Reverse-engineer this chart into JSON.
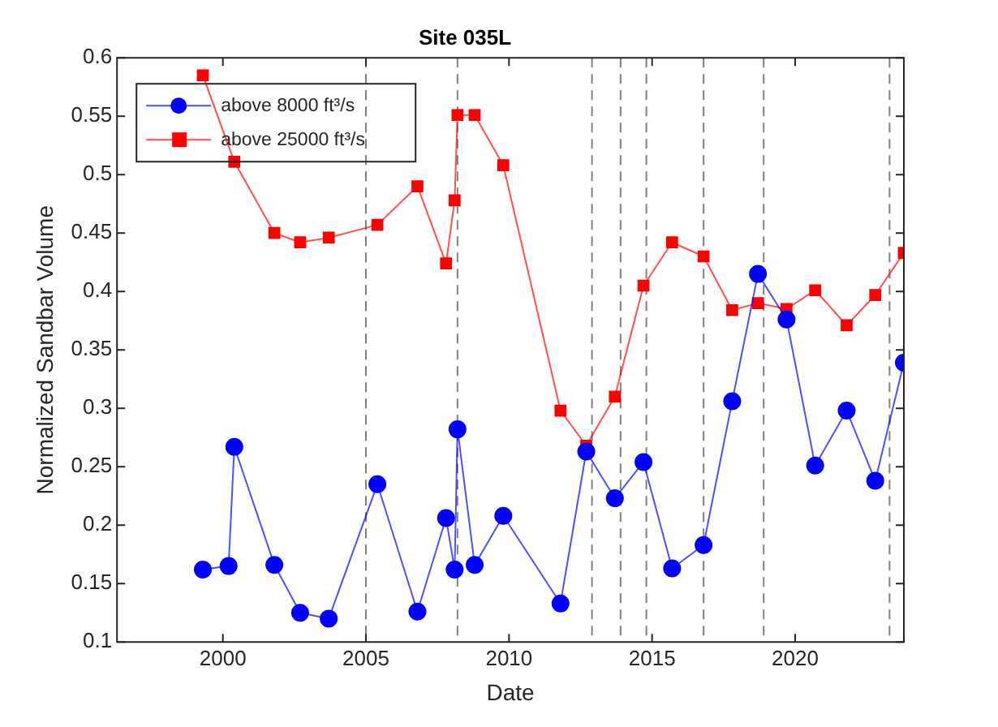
{
  "chart_data": {
    "type": "line",
    "title": "Site 035L",
    "xlabel": "Date",
    "ylabel": "Normalized Sandbar Volume",
    "xlim": [
      1996.3,
      2023.8
    ],
    "xticks": [
      2000,
      2005,
      2010,
      2015,
      2020
    ],
    "ylim": [
      0.1,
      0.6
    ],
    "yticks": [
      0.1,
      0.15,
      0.2,
      0.25,
      0.3,
      0.35,
      0.4,
      0.45,
      0.5,
      0.55,
      0.6
    ],
    "grid": false,
    "legend": "top left",
    "series": [
      {
        "name": "above 8000 ft³/s",
        "color": "#0000ff",
        "marker": "circle",
        "x": [
          1999.3,
          2000.2,
          2000.4,
          2001.8,
          2002.7,
          2003.7,
          2005.4,
          2006.8,
          2007.8,
          2008.1,
          2008.2,
          2008.8,
          2009.8,
          2011.8,
          2012.7,
          2013.7,
          2014.7,
          2015.7,
          2016.8,
          2017.8,
          2018.7,
          2019.7,
          2020.7,
          2021.8,
          2022.8,
          2023.8
        ],
        "values": [
          0.162,
          0.165,
          0.267,
          0.166,
          0.125,
          0.12,
          0.235,
          0.126,
          0.206,
          0.162,
          0.282,
          0.166,
          0.208,
          0.133,
          0.263,
          0.223,
          0.254,
          0.163,
          0.183,
          0.306,
          0.415,
          0.376,
          0.251,
          0.298,
          0.238,
          0.339
        ]
      },
      {
        "name": "above 25000 ft³/s",
        "color": "#ff0000",
        "marker": "square",
        "x": [
          1999.3,
          2000.4,
          2001.8,
          2002.7,
          2003.7,
          2005.4,
          2006.8,
          2007.8,
          2008.1,
          2008.2,
          2008.8,
          2009.8,
          2011.8,
          2012.7,
          2013.7,
          2014.7,
          2015.7,
          2016.8,
          2017.8,
          2018.7,
          2019.7,
          2020.7,
          2021.8,
          2022.8,
          2023.8
        ],
        "values": [
          0.585,
          0.511,
          0.45,
          0.442,
          0.446,
          0.457,
          0.49,
          0.424,
          0.478,
          0.551,
          0.551,
          0.508,
          0.298,
          0.268,
          0.31,
          0.405,
          0.442,
          0.43,
          0.384,
          0.39,
          0.385,
          0.401,
          0.371,
          0.397,
          0.433
        ]
      }
    ],
    "ref_lines": [
      {
        "axis": "x",
        "value": 2005.0,
        "color": "#808080",
        "line_style": "dashed"
      },
      {
        "axis": "x",
        "value": 2008.2,
        "color": "#808080",
        "line_style": "dashed"
      },
      {
        "axis": "x",
        "value": 2012.9,
        "color": "#808080",
        "line_style": "dashed"
      },
      {
        "axis": "x",
        "value": 2013.9,
        "color": "#808080",
        "line_style": "dashed"
      },
      {
        "axis": "x",
        "value": 2014.8,
        "color": "#808080",
        "line_style": "dashed"
      },
      {
        "axis": "x",
        "value": 2016.8,
        "color": "#808080",
        "line_style": "dashed"
      },
      {
        "axis": "x",
        "value": 2018.9,
        "color": "#808080",
        "line_style": "dashed"
      },
      {
        "axis": "x",
        "value": 2023.3,
        "color": "#808080",
        "line_style": "dashed"
      }
    ]
  }
}
